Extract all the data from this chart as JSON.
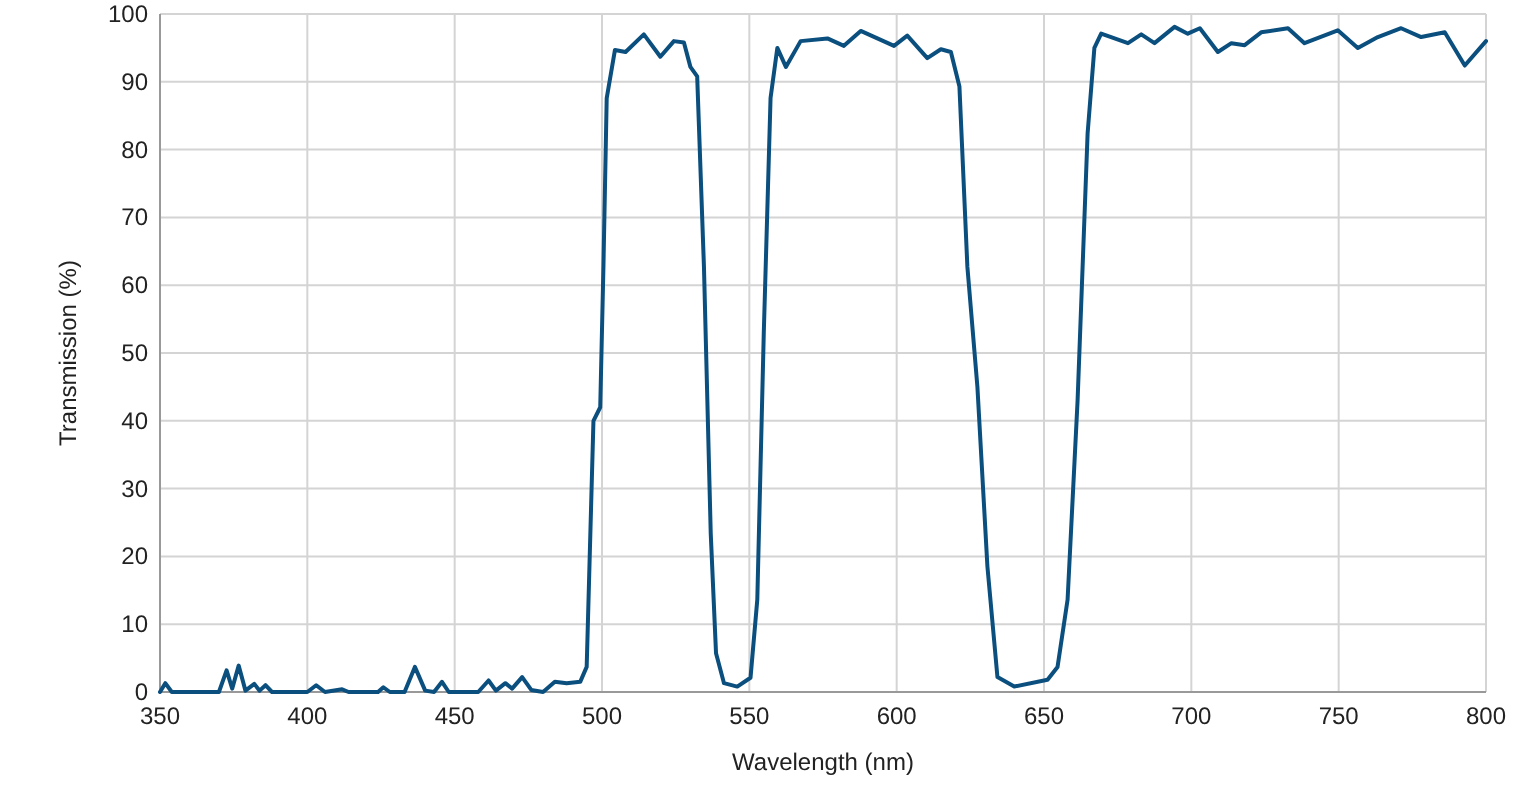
{
  "chart_data": {
    "type": "line",
    "xlabel": "Wavelength (nm)",
    "ylabel": "Transmission (%)",
    "xlim": [
      350,
      800
    ],
    "ylim": [
      0,
      100
    ],
    "xticks": [
      350,
      400,
      450,
      500,
      550,
      600,
      650,
      700,
      750,
      800
    ],
    "yticks": [
      0,
      10,
      20,
      30,
      40,
      50,
      60,
      70,
      80,
      90,
      100
    ],
    "grid": true,
    "marker": "none",
    "line_style": "solid",
    "series": [
      {
        "color": "#0b4f7f",
        "x": [
          350,
          351.8,
          354,
          370,
          372.6,
          374.5,
          376.7,
          379,
          382,
          383.8,
          385.8,
          388,
          400,
          403,
          406,
          411.8,
          414,
          424,
          425.8,
          428,
          433,
          436.5,
          440,
          443,
          445.7,
          448,
          458,
          461.5,
          464,
          467.2,
          469.5,
          472.9,
          476,
          480,
          484,
          488,
          492.6,
          494.8,
          497.1,
          499.4,
          500.5,
          501.6,
          504.4,
          508,
          514.2,
          519.8,
          524.4,
          527.8,
          530,
          532.3,
          534.6,
          536.9,
          538.7,
          541.4,
          545.9,
          550.4,
          552.7,
          554.9,
          557.2,
          559.5,
          562.4,
          567.4,
          576.5,
          582.1,
          587.8,
          599.1,
          603.6,
          610.4,
          615,
          618.4,
          621.3,
          624,
          627.4,
          630.8,
          634.2,
          639.9,
          651.2,
          654.6,
          658,
          661.4,
          664.8,
          667.1,
          669.4,
          678.5,
          683,
          687.5,
          694.3,
          698.8,
          702.9,
          709,
          713.6,
          718.1,
          723.7,
          732.8,
          738.4,
          749.7,
          756.5,
          763.3,
          771.2,
          778,
          786,
          792.8,
          800
        ],
        "values": [
          0,
          1.3,
          0,
          0,
          3.2,
          0.5,
          3.9,
          0.2,
          1.2,
          0.2,
          1,
          0,
          0,
          1,
          0,
          0.4,
          0,
          0,
          0.7,
          0,
          0,
          3.7,
          0.2,
          0,
          1.5,
          0,
          0,
          1.7,
          0.2,
          1.3,
          0.5,
          2.2,
          0.3,
          0,
          1.5,
          1.3,
          1.5,
          3.7,
          40,
          42,
          63,
          87.6,
          94.7,
          94.4,
          97,
          93.7,
          96,
          95.8,
          92.2,
          90.8,
          62.7,
          23.4,
          5.7,
          1.3,
          0.8,
          2.1,
          13.6,
          52.9,
          87.6,
          95,
          92.2,
          96,
          96.4,
          95.3,
          97.5,
          95.3,
          96.8,
          93.5,
          94.8,
          94.4,
          89.3,
          62.7,
          45,
          18.5,
          2.2,
          0.8,
          1.8,
          3.7,
          13.6,
          43,
          82.4,
          95,
          97.1,
          95.7,
          97,
          95.7,
          98.1,
          97.1,
          97.9,
          94.4,
          95.7,
          95.4,
          97.3,
          97.9,
          95.7,
          97.6,
          95,
          96.6,
          97.9,
          96.6,
          97.3,
          92.4,
          96
        ]
      }
    ]
  }
}
